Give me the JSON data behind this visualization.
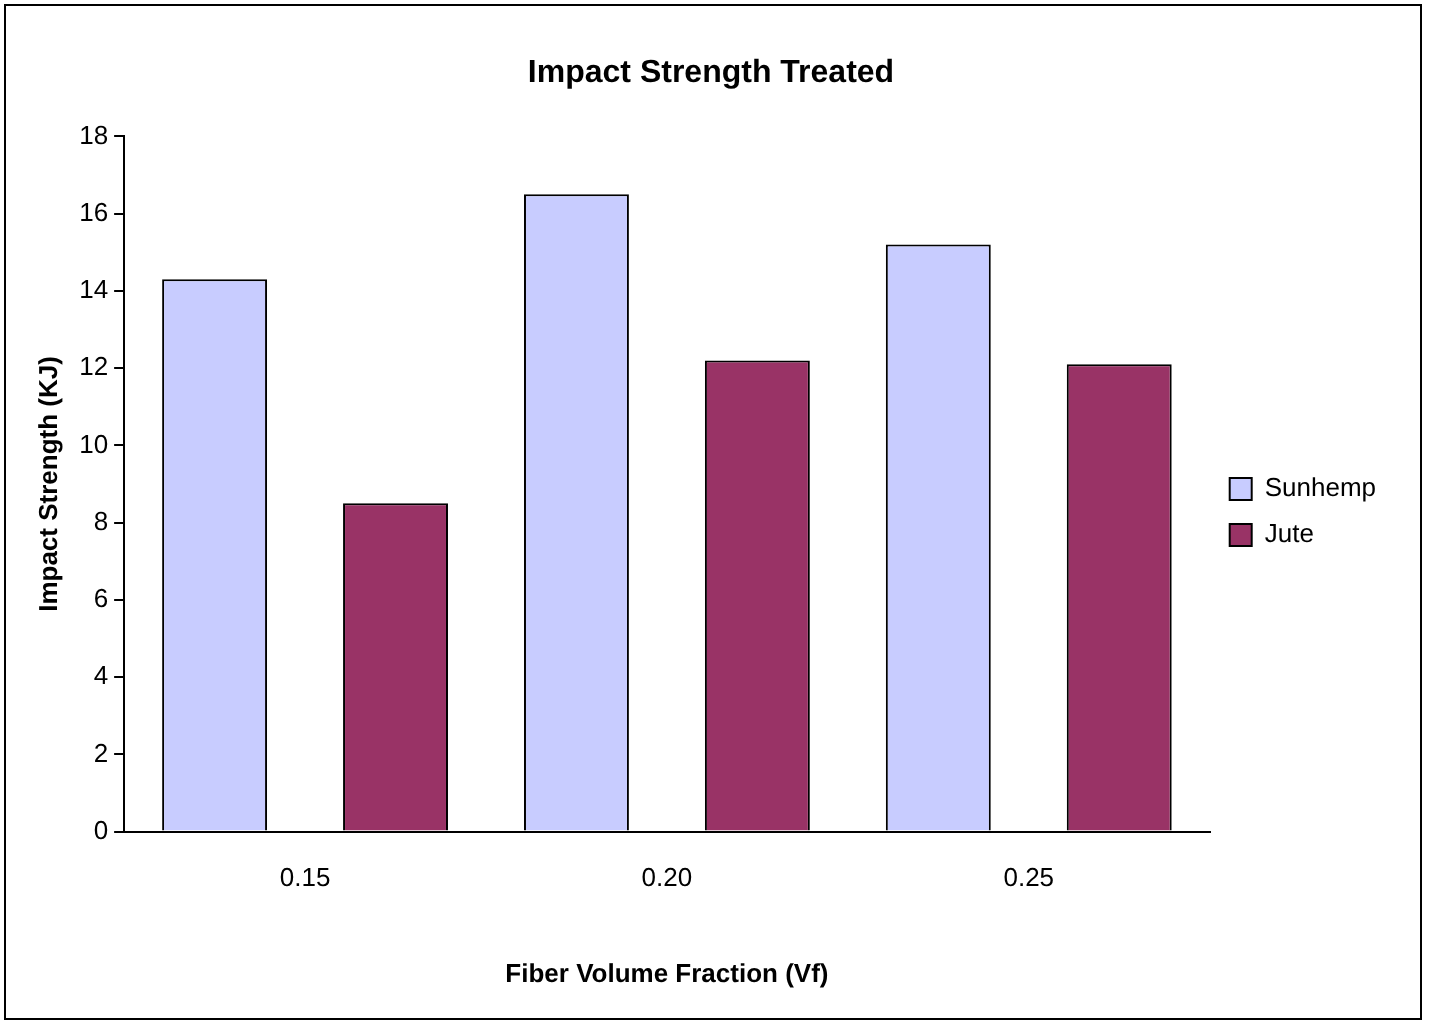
{
  "chart_data": {
    "type": "bar",
    "title": "Impact Strength Treated",
    "xlabel": "Fiber Volume Fraction (Vf)",
    "ylabel": "Impact Strength (KJ)",
    "categories": [
      "0.15",
      "0.20",
      "0.25"
    ],
    "series": [
      {
        "name": "Sunhemp",
        "color": "#c8ccff",
        "values": [
          14.3,
          16.5,
          15.2
        ]
      },
      {
        "name": "Jute",
        "color": "#993366",
        "values": [
          8.5,
          12.2,
          12.1
        ]
      }
    ],
    "ylim": [
      0,
      18
    ],
    "yticks": [
      0,
      2,
      4,
      6,
      8,
      10,
      12,
      14,
      16,
      18
    ],
    "grid": false,
    "legend": "right"
  }
}
